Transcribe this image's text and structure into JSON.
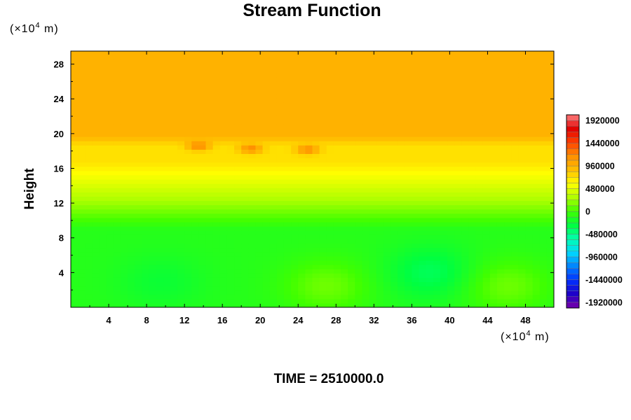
{
  "chart_data": {
    "type": "heatmap",
    "title": "Stream Function",
    "ylabel": "Height",
    "xlabel": "",
    "x_unit": {
      "prefix": "(×10",
      "exponent": "4",
      "suffix": " m)"
    },
    "y_unit": {
      "prefix": "(×10",
      "exponent": "4",
      "suffix": " m)"
    },
    "xlim": [
      0,
      51
    ],
    "ylim": [
      0,
      29.5
    ],
    "x_ticks": [
      4,
      8,
      12,
      16,
      20,
      24,
      28,
      32,
      36,
      40,
      44,
      48
    ],
    "y_ticks": [
      4,
      8,
      12,
      16,
      20,
      24,
      28
    ],
    "x_tick_labels": [
      "4",
      "8",
      "12",
      "16",
      "20",
      "24",
      "28",
      "32",
      "36",
      "40",
      "44",
      "48"
    ],
    "y_tick_labels": [
      "4",
      "8",
      "12",
      "16",
      "20",
      "24",
      "28"
    ],
    "colorbar": {
      "vmin": -2040000,
      "vmax": 2040000,
      "tick_values": [
        1920000,
        1440000,
        960000,
        480000,
        0,
        -480000,
        -960000,
        -1440000,
        -1920000
      ],
      "tick_labels": [
        "1920000",
        "1440000",
        "960000",
        "480000",
        "0",
        "-480000",
        "-960000",
        "-1440000",
        "-1920000"
      ]
    },
    "field_description_levels": {
      "upper_uniform_above_20": 960000,
      "band_16_to_19": 720000,
      "band_12_to_16": 240000,
      "lower_region_below_12": -120000,
      "local_maxima_near_y18": [
        {
          "x": 13.5,
          "y": 18.6,
          "value": 1200000
        },
        {
          "x": 19,
          "y": 18.3,
          "value": 1200000
        },
        {
          "x": 25,
          "y": 18.2,
          "value": 1200000
        }
      ],
      "lower_cells": [
        {
          "x": 27,
          "y": 2.5,
          "value": 120000
        },
        {
          "x": 46,
          "y": 2.5,
          "value": 120000
        },
        {
          "x": 38,
          "y": 4,
          "value": -360000
        },
        {
          "x": 9.5,
          "y": 3,
          "value": -240000
        }
      ]
    },
    "grid": false,
    "legend": "colorbar-right"
  },
  "time_label": "TIME = 2510000.0",
  "colors": {
    "scale": [
      "#7a00a8",
      "#1f00c8",
      "#0030ff",
      "#0080ff",
      "#00d8ff",
      "#00ffb0",
      "#00ff40",
      "#40ff00",
      "#b0ff00",
      "#ffff00",
      "#ffc000",
      "#ff9000",
      "#ff4000",
      "#e00000",
      "#ff8080"
    ]
  }
}
